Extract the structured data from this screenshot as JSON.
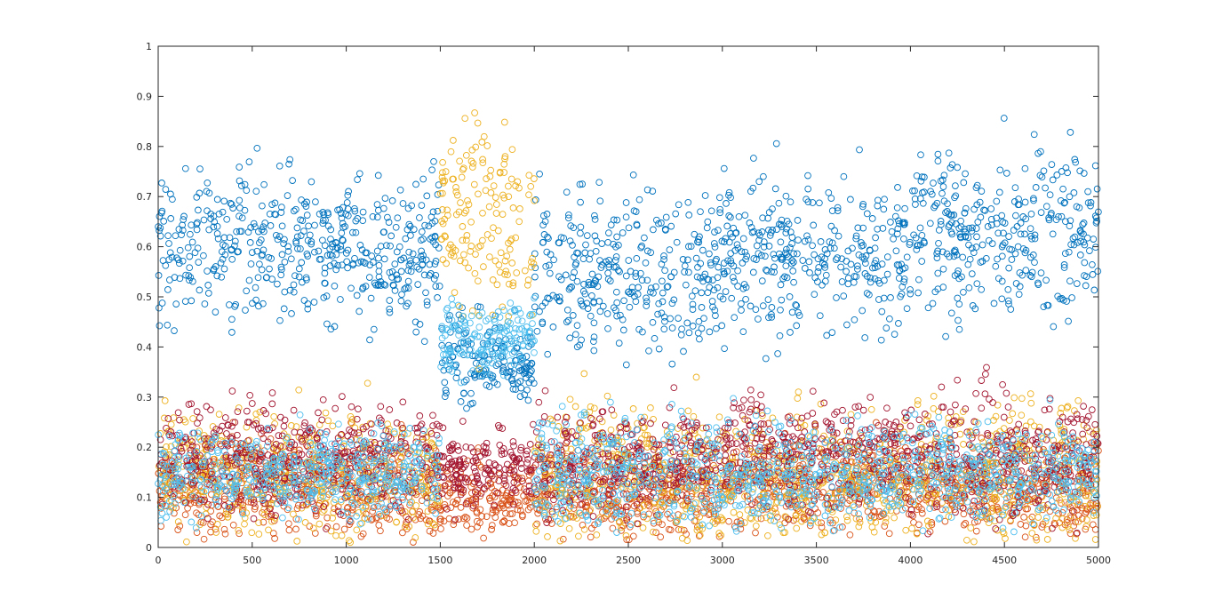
{
  "chart_data": {
    "type": "scatter",
    "title": "",
    "xlabel": "",
    "ylabel": "",
    "xlim": [
      0,
      5000
    ],
    "ylim": [
      0,
      1
    ],
    "grid": false,
    "legend": "none",
    "marker": "open-circle",
    "x_ticks": [
      "0",
      "500",
      "1000",
      "1500",
      "2000",
      "2500",
      "3000",
      "3500",
      "4000",
      "4500",
      "5000"
    ],
    "y_ticks": [
      "0",
      "0.1",
      "0.2",
      "0.3",
      "0.4",
      "0.5",
      "0.6",
      "0.7",
      "0.8",
      "0.9",
      "1"
    ],
    "series": [
      {
        "color": "#0072BD",
        "segments": [
          {
            "x": [
              0,
              1500
            ],
            "y_range": [
              0.37,
              0.84
            ],
            "mean": 0.6
          },
          {
            "x": [
              1500,
              2000
            ],
            "y_range": [
              0.22,
              0.5
            ],
            "mean": 0.37
          },
          {
            "x": [
              2000,
              3000
            ],
            "y_range": [
              0.35,
              0.85
            ],
            "mean": 0.55
          },
          {
            "x": [
              3000,
              4000
            ],
            "y_range": [
              0.37,
              0.86
            ],
            "mean": 0.58
          },
          {
            "x": [
              4000,
              5000
            ],
            "y_range": [
              0.4,
              0.91
            ],
            "mean": 0.63
          }
        ]
      },
      {
        "color": "#D95319",
        "segments": [
          {
            "x": [
              0,
              1500
            ],
            "y_range": [
              0.01,
              0.3
            ],
            "mean": 0.12
          },
          {
            "x": [
              1500,
              2000
            ],
            "y_range": [
              0.01,
              0.23
            ],
            "mean": 0.1
          },
          {
            "x": [
              2000,
              3000
            ],
            "y_range": [
              0.01,
              0.3
            ],
            "mean": 0.11
          },
          {
            "x": [
              3000,
              4000
            ],
            "y_range": [
              0.02,
              0.3
            ],
            "mean": 0.13
          },
          {
            "x": [
              4000,
              5000
            ],
            "y_range": [
              0.01,
              0.3
            ],
            "mean": 0.12
          }
        ]
      },
      {
        "color": "#EDB120",
        "segments": [
          {
            "x": [
              0,
              1500
            ],
            "y_range": [
              0.01,
              0.38
            ],
            "mean": 0.15
          },
          {
            "x": [
              1500,
              2000
            ],
            "y_range": [
              0.32,
              0.91
            ],
            "mean": 0.65
          },
          {
            "x": [
              2000,
              3000
            ],
            "y_range": [
              0.01,
              0.45
            ],
            "mean": 0.15
          },
          {
            "x": [
              3000,
              4000
            ],
            "y_range": [
              0.02,
              0.4
            ],
            "mean": 0.14
          },
          {
            "x": [
              4000,
              5000
            ],
            "y_range": [
              0.01,
              0.45
            ],
            "mean": 0.15
          }
        ]
      },
      {
        "color": "#A2142F",
        "segments": [
          {
            "x": [
              0,
              1500
            ],
            "y_range": [
              0.02,
              0.36
            ],
            "mean": 0.18
          },
          {
            "x": [
              1500,
              2000
            ],
            "y_range": [
              0.02,
              0.26
            ],
            "mean": 0.16
          },
          {
            "x": [
              2000,
              3000
            ],
            "y_range": [
              0.02,
              0.33
            ],
            "mean": 0.17
          },
          {
            "x": [
              3000,
              4000
            ],
            "y_range": [
              0.02,
              0.36
            ],
            "mean": 0.19
          },
          {
            "x": [
              4000,
              5000
            ],
            "y_range": [
              0.02,
              0.42
            ],
            "mean": 0.18
          }
        ]
      },
      {
        "color": "#4DBEEE",
        "segments": [
          {
            "x": [
              0,
              1500
            ],
            "y_range": [
              0.03,
              0.3
            ],
            "mean": 0.15
          },
          {
            "x": [
              1500,
              2000
            ],
            "y_range": [
              0.3,
              0.53
            ],
            "mean": 0.42
          },
          {
            "x": [
              2000,
              3000
            ],
            "y_range": [
              0.03,
              0.4
            ],
            "mean": 0.15
          },
          {
            "x": [
              3000,
              4000
            ],
            "y_range": [
              0.03,
              0.35
            ],
            "mean": 0.15
          },
          {
            "x": [
              4000,
              5000
            ],
            "y_range": [
              0.03,
              0.33
            ],
            "mean": 0.15
          }
        ]
      }
    ]
  }
}
